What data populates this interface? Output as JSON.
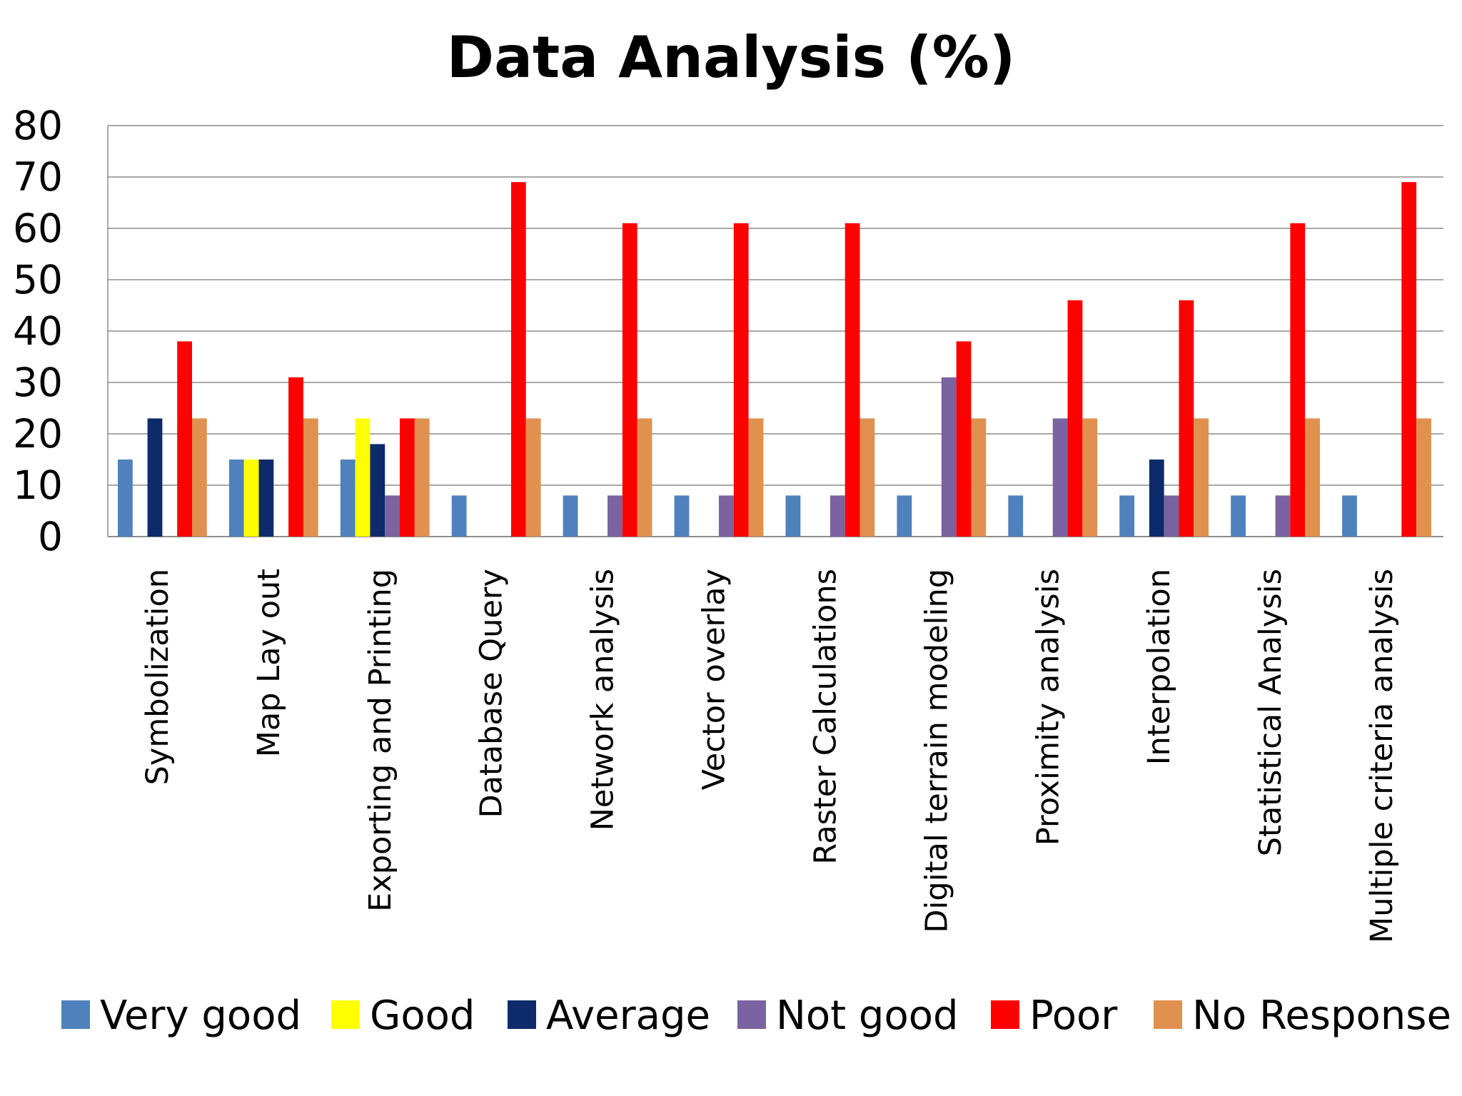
{
  "chart_data": {
    "type": "bar",
    "title": "Data Analysis (%)",
    "xlabel": "",
    "ylabel": "",
    "ylim": [
      0,
      80
    ],
    "yticks": [
      0,
      10,
      20,
      30,
      40,
      50,
      60,
      70,
      80
    ],
    "grid": true,
    "legend_position": "bottom",
    "categories": [
      "Symbolization",
      "Map Lay out",
      "Exporting and Printing",
      "Database Query",
      "Network analysis",
      "Vector overlay",
      "Raster Calculations",
      "Digital terrain modeling",
      "Proximity analysis",
      "Interpolation",
      "Statistical Analysis",
      "Multiple criteria analysis"
    ],
    "series": [
      {
        "name": "Very good",
        "color": "#4F81BD",
        "values": [
          15,
          15,
          15,
          8,
          8,
          8,
          8,
          8,
          8,
          8,
          8,
          8
        ]
      },
      {
        "name": "Good",
        "color": "#FFFF00",
        "values": [
          0,
          15,
          23,
          0,
          0,
          0,
          0,
          0,
          0,
          0,
          0,
          0
        ]
      },
      {
        "name": "Average",
        "color": "#0D2B6B",
        "values": [
          23,
          15,
          18,
          0,
          0,
          0,
          0,
          0,
          0,
          15,
          0,
          0
        ]
      },
      {
        "name": "Not good",
        "color": "#7B62A0",
        "values": [
          0,
          0,
          8,
          0,
          8,
          8,
          8,
          31,
          23,
          8,
          8,
          0
        ]
      },
      {
        "name": "Poor",
        "color": "#FF0000",
        "values": [
          38,
          31,
          23,
          69,
          61,
          61,
          61,
          38,
          46,
          46,
          61,
          69
        ]
      },
      {
        "name": "No Response",
        "color": "#E0904F",
        "values": [
          23,
          23,
          23,
          23,
          23,
          23,
          23,
          23,
          23,
          23,
          23,
          23
        ]
      }
    ]
  }
}
